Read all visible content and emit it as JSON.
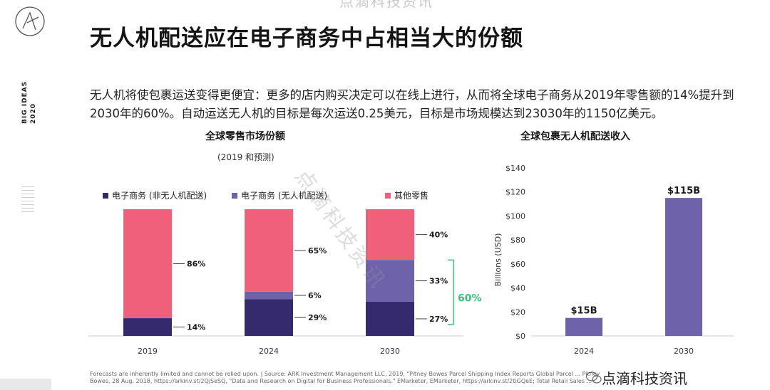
{
  "watermark_top": "点滴科技资讯",
  "title": "无人机配送应在电子商务中占相当大的份额",
  "side_tag": {
    "line1": "BIG IDEAS",
    "line2": "2020"
  },
  "intro": "无人机将使包裹运送变得更便宜：更多的店内购买决定可以在线上进行，从而将全球电子商务从2019年零售额的14%提升到2030年的60%。自动运送无人机的目标是每次运送0.25美元，目标是市场规模达到23030年的1150亿美元。",
  "watermark_mid": "点滴科技资讯",
  "footer": "Forecasts are inherently limited and cannot be relied upon.  |  Source: ARK Investment Management LLC, 2019, \"Pitney Bowes Parcel Shipping Index Reports Global Parcel ... Pitney Bowes, 28 Aug. 2018, https://arkinv.st/2QjSeSQ, \"Data and Research on Digital for Business Professionals.\" EMarketer, EMarketer, https://arkinv.st/2tiGQeE; Total Retail Sales ...",
  "watermark_br": "点滴科技资讯",
  "colors": {
    "ecom_non_drone": "#352a6b",
    "ecom_drone": "#6e63aa",
    "other": "#f0607a",
    "bracket": "#3dbf7c"
  },
  "chart_data": [
    {
      "type": "bar",
      "stacked": true,
      "title": "全球零售市场份额",
      "subtitle": "(2019 和预测)",
      "categories": [
        "2019",
        "2024",
        "2030"
      ],
      "series": [
        {
          "name": "电子商务 (非无人机配送)",
          "values": [
            14,
            29,
            27
          ],
          "labels": [
            "14%",
            "29%",
            "27%"
          ]
        },
        {
          "name": "电子商务 (无人机配送)",
          "values": [
            0,
            6,
            33
          ],
          "labels": [
            "",
            "6%",
            "33%"
          ]
        },
        {
          "name": "其他零售",
          "values": [
            86,
            65,
            40
          ],
          "labels": [
            "86%",
            "65%",
            "40%"
          ]
        }
      ],
      "annotation": "60%",
      "ylim": [
        0,
        100
      ],
      "legend": "top"
    },
    {
      "type": "bar",
      "title": "全球包裹无人机配送收入",
      "categories": [
        "2024",
        "2030"
      ],
      "values": [
        15,
        115
      ],
      "labels": [
        "$15B",
        "$115B"
      ],
      "ylabel": "Billions (USD)",
      "ylim": [
        0,
        140
      ],
      "yticks": [
        "$0",
        "$20",
        "$40",
        "$60",
        "$80",
        "$100",
        "$120",
        "$140"
      ],
      "grid": false
    }
  ]
}
